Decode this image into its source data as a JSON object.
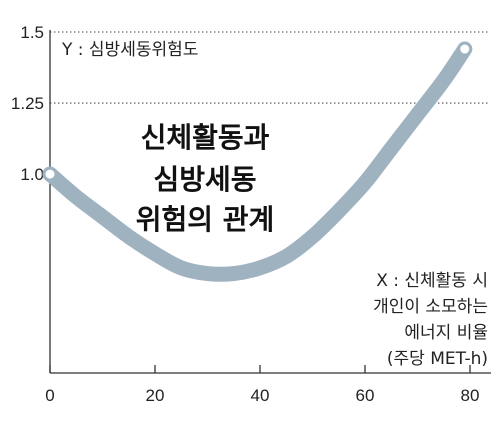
{
  "chart_data": {
    "type": "line",
    "title": [
      "신체활동과",
      "심방세동",
      "위험의 관계"
    ],
    "ylabel": "Y : 심방세동위험도",
    "xlabel": [
      "X : 신체활동 시",
      "개인이 소모하는",
      "에너지 비율",
      "(주당 MET-h)"
    ],
    "xlim": [
      0,
      84
    ],
    "ylim": [
      0.3,
      1.5
    ],
    "xticks": [
      0,
      20,
      40,
      60,
      80
    ],
    "xtick_labels": [
      "0",
      "20",
      "40",
      "60",
      "80"
    ],
    "yticks": [
      1.0,
      1.25,
      1.5
    ],
    "ytick_labels": [
      "1.0",
      "1.25",
      "1.5"
    ],
    "grid": {
      "y": [
        1.25,
        1.5
      ],
      "dotted": true
    },
    "legend": false,
    "end_markers": true,
    "x": [
      0,
      5,
      10,
      15,
      20,
      25,
      30,
      35,
      40,
      45,
      50,
      55,
      60,
      65,
      70,
      75,
      79
    ],
    "series": [
      {
        "values": [
          1.0,
          0.92,
          0.85,
          0.78,
          0.72,
          0.67,
          0.65,
          0.65,
          0.67,
          0.71,
          0.78,
          0.87,
          0.97,
          1.09,
          1.21,
          1.33,
          1.44
        ]
      }
    ],
    "colors": {
      "curve": "#9fb2c0",
      "marker_fill": "#ffffff",
      "text": "#222222",
      "axis": "#333333",
      "grid": "#666666"
    }
  }
}
